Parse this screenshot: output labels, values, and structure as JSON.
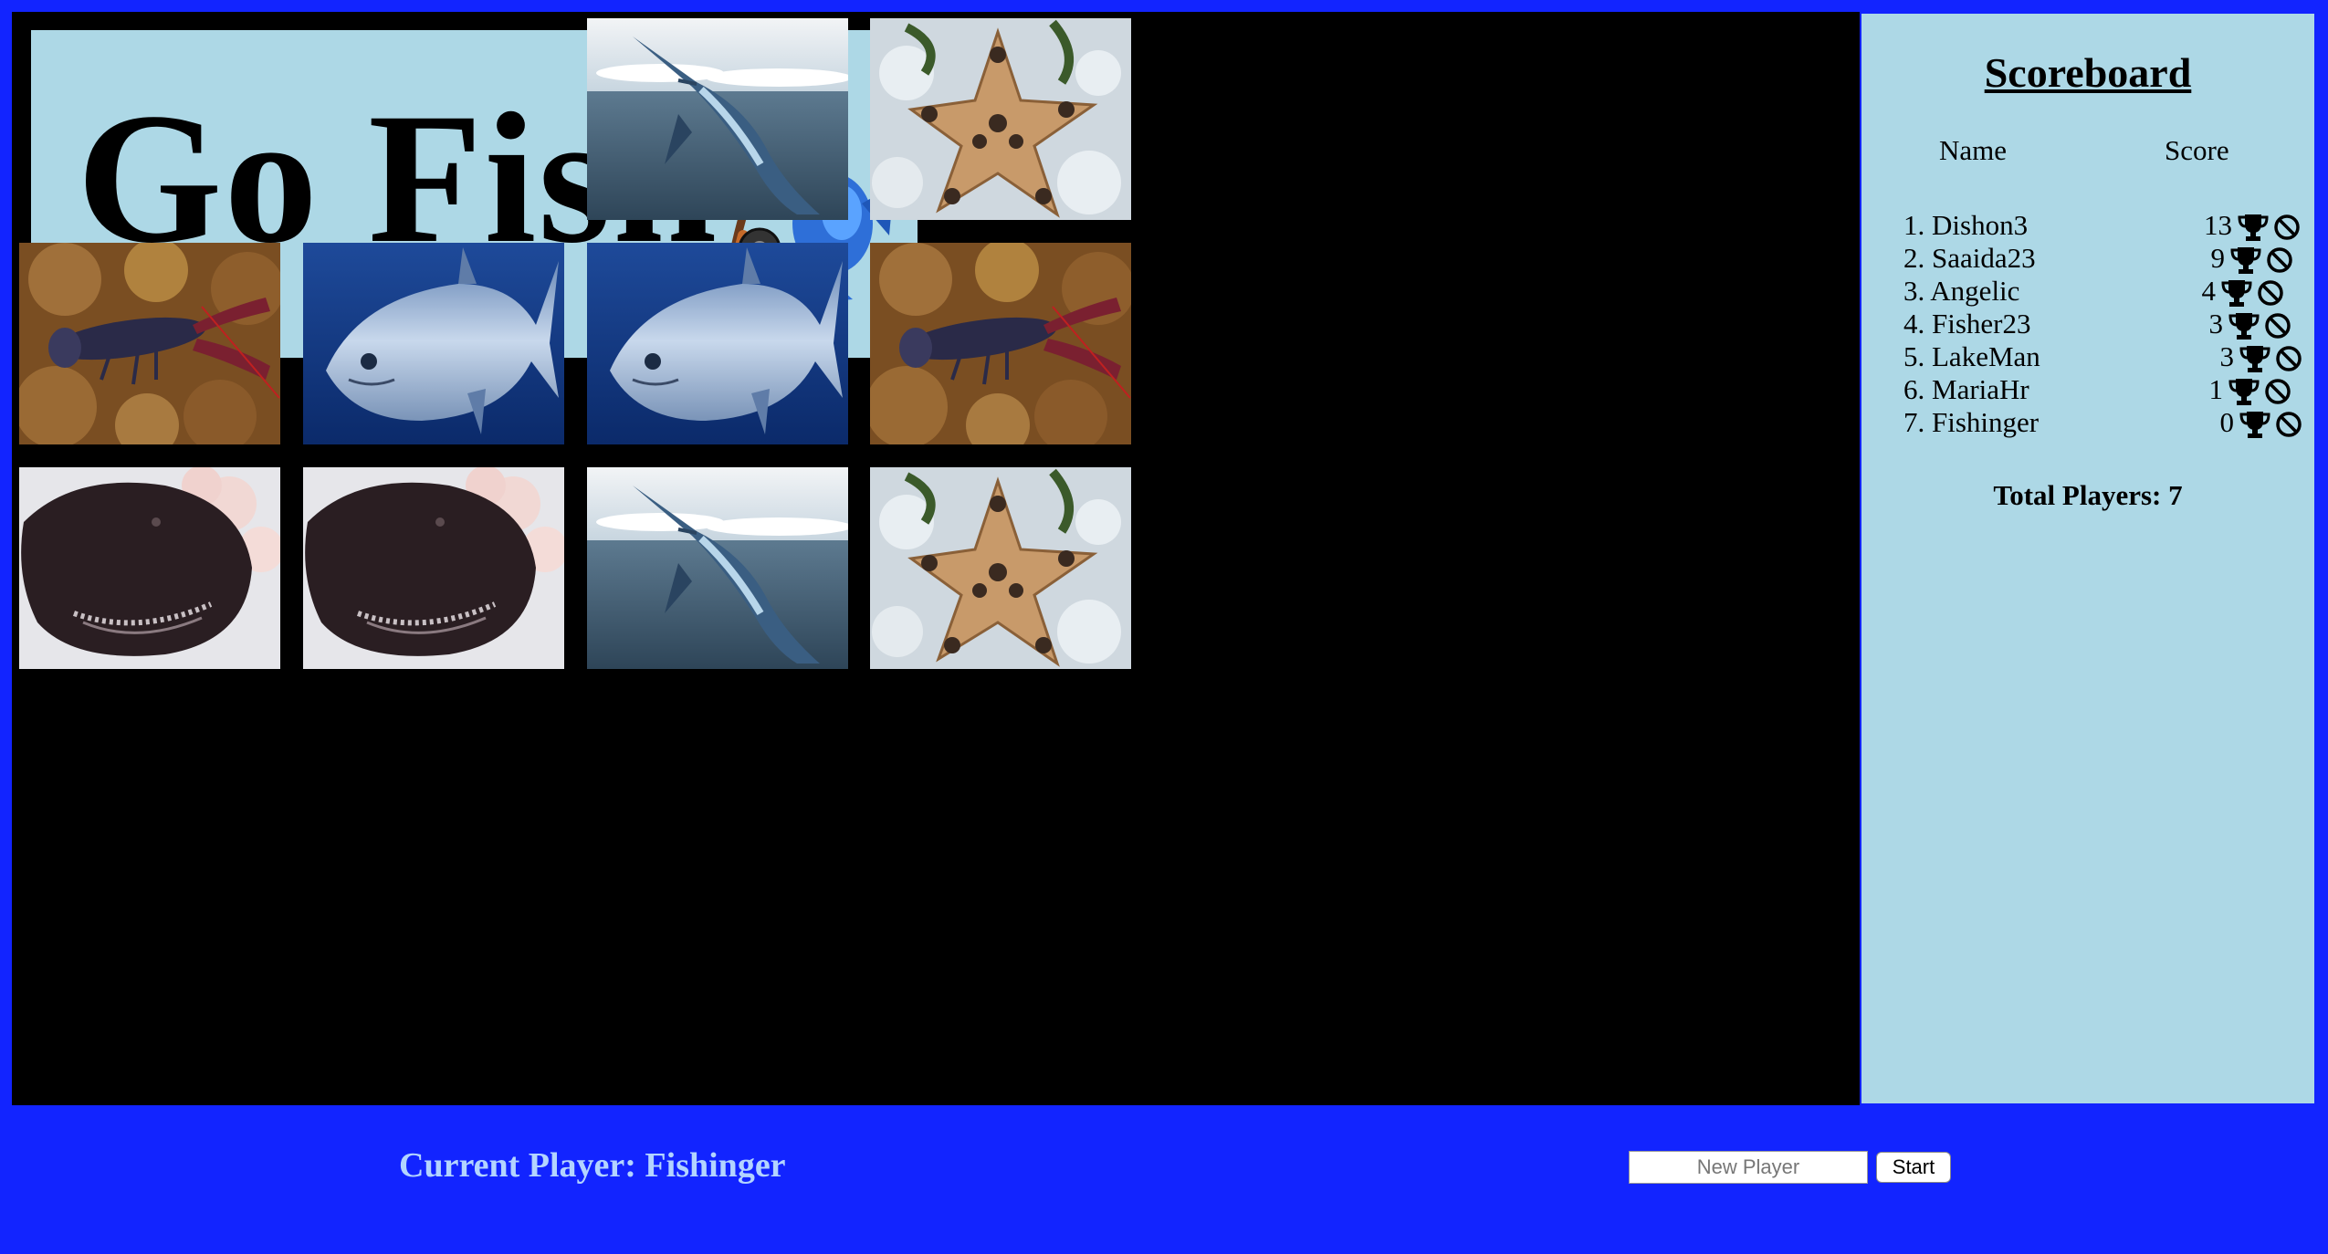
{
  "title": {
    "text": "Go Fish",
    "rod_icon": "fishing-rod-with-fish-icon"
  },
  "cards": [
    {
      "image": "marlin-photo"
    },
    {
      "image": "starfish-photo"
    },
    {
      "image": "lobster-photo"
    },
    {
      "image": "tuna-photo"
    },
    {
      "image": "tuna-photo"
    },
    {
      "image": "lobster-photo"
    },
    {
      "image": "anglerfish-photo"
    },
    {
      "image": "anglerfish-photo"
    },
    {
      "image": "marlin-photo"
    },
    {
      "image": "starfish-photo"
    }
  ],
  "scoreboard": {
    "title": "Scoreboard",
    "col_name": "Name",
    "col_score": "Score",
    "players": [
      {
        "rank": "1.",
        "name": "Dishon3",
        "score": "13"
      },
      {
        "rank": "2.",
        "name": "Saaida23",
        "score": "9"
      },
      {
        "rank": "3.",
        "name": "Angelic",
        "score": "4"
      },
      {
        "rank": "4.",
        "name": "Fisher23",
        "score": "3"
      },
      {
        "rank": "5.",
        "name": "LakeMan",
        "score": "3"
      },
      {
        "rank": "6.",
        "name": "MariaHr",
        "score": "1"
      },
      {
        "rank": "7.",
        "name": "Fishinger",
        "score": "0"
      }
    ],
    "trophy_icon": "trophy-icon",
    "remove_icon": "prohibited-icon",
    "total_label": "Total Players: 7"
  },
  "footer": {
    "current_player": "Current Player: Fishinger",
    "new_player_placeholder": "New Player",
    "start_label": "Start"
  },
  "colors": {
    "background": "#1224ff",
    "panel": "#add8e6",
    "board": "#000000",
    "current_player_text": "#b3d4ff"
  }
}
